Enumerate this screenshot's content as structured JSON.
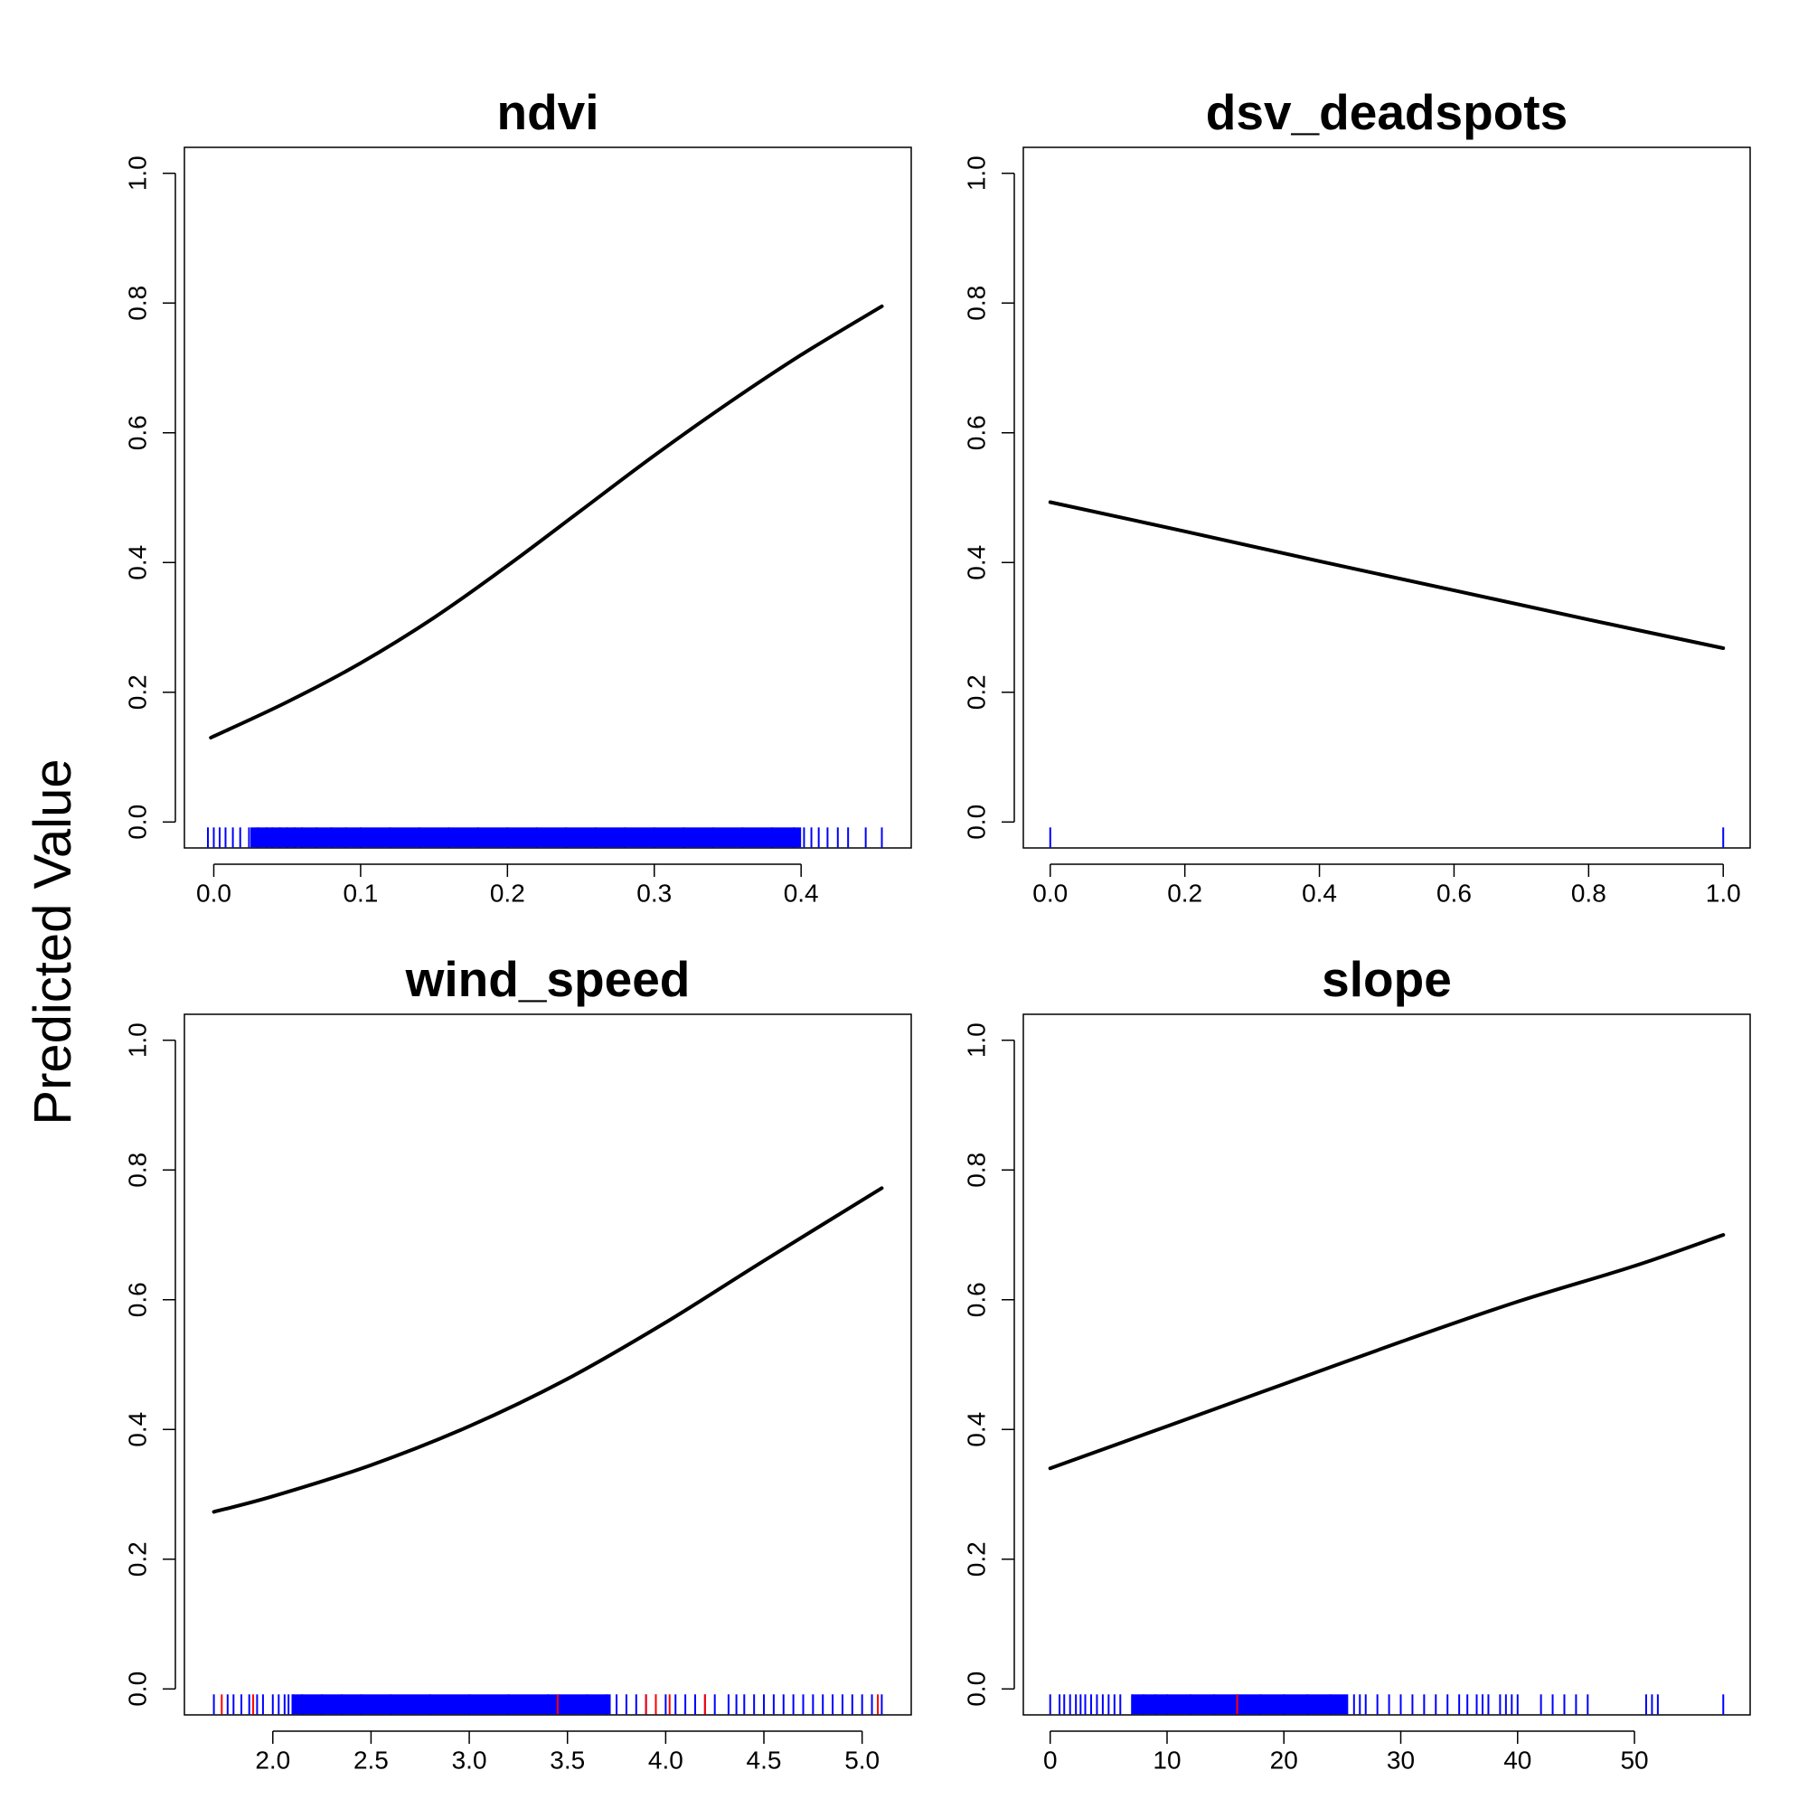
{
  "figure": {
    "ylabel": "Predicted Value",
    "curve_color": "#000000",
    "rug_color": "#0000ff",
    "rug_highlight_color": "#ff0000"
  },
  "chart_data": [
    {
      "type": "line",
      "title": "ndvi",
      "xlabel": "",
      "ylabel": "",
      "xlim": [
        -0.02,
        0.475
      ],
      "ylim": [
        -0.04,
        1.04
      ],
      "xticks": [
        "0.0",
        "0.1",
        "0.2",
        "0.3",
        "0.4"
      ],
      "xtick_values": [
        0.0,
        0.1,
        0.2,
        0.3,
        0.4
      ],
      "yticks": [
        "0.0",
        "0.2",
        "0.4",
        "0.6",
        "0.8",
        "1.0"
      ],
      "ytick_values": [
        0.0,
        0.2,
        0.4,
        0.6,
        0.8,
        1.0
      ],
      "x": [
        -0.002,
        0.05,
        0.1,
        0.15,
        0.2,
        0.25,
        0.3,
        0.35,
        0.4,
        0.455
      ],
      "y": [
        0.13,
        0.185,
        0.245,
        0.315,
        0.395,
        0.48,
        0.565,
        0.645,
        0.72,
        0.795
      ],
      "rug": [
        -0.004,
        0.0,
        0.004,
        0.008,
        0.013,
        0.018,
        0.024,
        0.03,
        0.036,
        0.04,
        0.045,
        0.05,
        0.055,
        0.06,
        0.07,
        0.08,
        0.09,
        0.1,
        0.12,
        0.14,
        0.16,
        0.18,
        0.2,
        0.22,
        0.24,
        0.26,
        0.28,
        0.3,
        0.32,
        0.34,
        0.36,
        0.38,
        0.395,
        0.402,
        0.407,
        0.412,
        0.418,
        0.425,
        0.432,
        0.444,
        0.455
      ],
      "rug_dense_ranges": [
        [
          0.025,
          0.4
        ]
      ],
      "rug_highlight": []
    },
    {
      "type": "line",
      "title": "dsv_deadspots",
      "xlabel": "",
      "ylabel": "",
      "xlim": [
        -0.04,
        1.04
      ],
      "ylim": [
        -0.04,
        1.04
      ],
      "xticks": [
        "0.0",
        "0.2",
        "0.4",
        "0.6",
        "0.8",
        "1.0"
      ],
      "xtick_values": [
        0.0,
        0.2,
        0.4,
        0.6,
        0.8,
        1.0
      ],
      "yticks": [
        "0.0",
        "0.2",
        "0.4",
        "0.6",
        "0.8",
        "1.0"
      ],
      "ytick_values": [
        0.0,
        0.2,
        0.4,
        0.6,
        0.8,
        1.0
      ],
      "x": [
        0.0,
        0.2,
        0.4,
        0.6,
        0.8,
        1.0
      ],
      "y": [
        0.493,
        0.448,
        0.402,
        0.357,
        0.312,
        0.268
      ],
      "rug": [
        0.0,
        1.0
      ],
      "rug_dense_ranges": [],
      "rug_highlight": []
    },
    {
      "type": "line",
      "title": "wind_speed",
      "xlabel": "",
      "ylabel": "",
      "xlim": [
        1.55,
        5.25
      ],
      "ylim": [
        -0.04,
        1.04
      ],
      "xticks": [
        "2.0",
        "2.5",
        "3.0",
        "3.5",
        "4.0",
        "4.5",
        "5.0"
      ],
      "xtick_values": [
        2.0,
        2.5,
        3.0,
        3.5,
        4.0,
        4.5,
        5.0
      ],
      "yticks": [
        "0.0",
        "0.2",
        "0.4",
        "0.6",
        "0.8",
        "1.0"
      ],
      "ytick_values": [
        0.0,
        0.2,
        0.4,
        0.6,
        0.8,
        1.0
      ],
      "x": [
        1.7,
        2.0,
        2.5,
        3.0,
        3.5,
        4.0,
        4.5,
        5.1
      ],
      "y": [
        0.273,
        0.297,
        0.345,
        0.405,
        0.478,
        0.565,
        0.66,
        0.772
      ],
      "rug": [
        1.7,
        1.77,
        1.8,
        1.84,
        1.88,
        1.92,
        1.95,
        2.0,
        2.03,
        2.06,
        2.08,
        2.1,
        2.15,
        2.25,
        2.35,
        2.45,
        2.6,
        2.8,
        3.0,
        3.2,
        3.4,
        3.6,
        3.7,
        3.75,
        3.8,
        3.85,
        3.9,
        3.95,
        4.0,
        4.05,
        4.1,
        4.15,
        4.2,
        4.25,
        4.32,
        4.36,
        4.4,
        4.45,
        4.5,
        4.55,
        4.6,
        4.65,
        4.7,
        4.75,
        4.8,
        4.85,
        4.9,
        4.95,
        5.0,
        5.05,
        5.1
      ],
      "rug_dense_ranges": [
        [
          2.1,
          3.72
        ]
      ],
      "rug_highlight": [
        1.74,
        1.9,
        3.45,
        3.9,
        3.95,
        4.02,
        4.2,
        5.08
      ]
    },
    {
      "type": "line",
      "title": "slope",
      "xlabel": "",
      "ylabel": "",
      "xlim": [
        -2.3,
        59.9
      ],
      "ylim": [
        -0.04,
        1.04
      ],
      "xticks": [
        "0",
        "10",
        "20",
        "30",
        "40",
        "50"
      ],
      "xtick_values": [
        0,
        10,
        20,
        30,
        40,
        50
      ],
      "yticks": [
        "0.0",
        "0.2",
        "0.4",
        "0.6",
        "0.8",
        "1.0"
      ],
      "ytick_values": [
        0.0,
        0.2,
        0.4,
        0.6,
        0.8,
        1.0
      ],
      "x": [
        0,
        10,
        20,
        30,
        40,
        50,
        57.6
      ],
      "y": [
        0.34,
        0.405,
        0.47,
        0.535,
        0.597,
        0.652,
        0.7
      ],
      "rug": [
        0,
        0.8,
        1.2,
        1.7,
        2.2,
        2.6,
        3.0,
        3.5,
        4.0,
        4.5,
        5.0,
        5.5,
        6.0,
        7.0,
        8.0,
        9.0,
        10.0,
        12.0,
        14.0,
        16.0,
        18.0,
        20.0,
        22.0,
        24.0,
        26.0,
        26.5,
        27.0,
        28.0,
        29.0,
        30.0,
        31.0,
        32.0,
        33.0,
        34.0,
        35.0,
        35.7,
        36.5,
        37.0,
        37.5,
        38.5,
        39.0,
        39.5,
        40.0,
        42.0,
        43.0,
        44.0,
        45.0,
        46.0,
        51.0,
        51.5,
        52.0,
        57.6
      ],
      "rug_dense_ranges": [
        [
          7.0,
          25.5
        ]
      ],
      "rug_highlight": [
        16.0
      ]
    }
  ]
}
